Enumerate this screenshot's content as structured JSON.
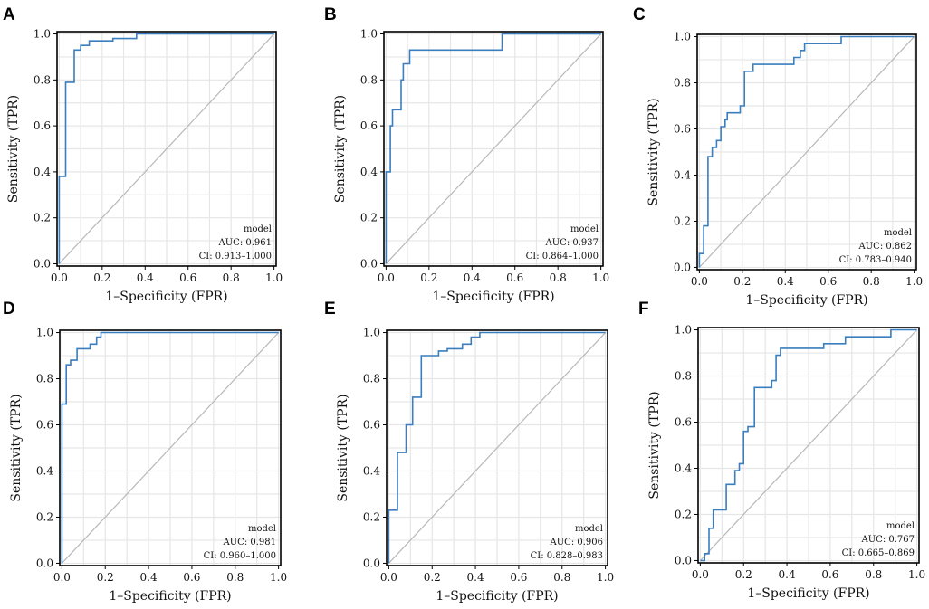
{
  "colors": {
    "roc_line": "#3a7ebf",
    "diagonal": "#b8b8b8",
    "grid": "#e6e6e6",
    "frame": "#000000"
  },
  "chart_data": [
    {
      "panel": "A",
      "type": "line",
      "xlabel": "1–Specificity (FPR)",
      "ylabel": "Sensitivity (TPR)",
      "xlim": [
        0,
        1
      ],
      "ylim": [
        0,
        1
      ],
      "xticks": [
        "0.0",
        "0.2",
        "0.4",
        "0.6",
        "0.8",
        "1.0"
      ],
      "yticks": [
        "0.0",
        "0.2",
        "0.4",
        "0.6",
        "0.8",
        "1.0"
      ],
      "grid": true,
      "legend": {
        "title": "model",
        "auc": "AUC: 0.961",
        "ci": "CI: 0.913–1.000",
        "position": "bottom-right"
      },
      "roc": [
        [
          0,
          0
        ],
        [
          0,
          0.38
        ],
        [
          0.03,
          0.38
        ],
        [
          0.03,
          0.79
        ],
        [
          0.07,
          0.79
        ],
        [
          0.07,
          0.93
        ],
        [
          0.1,
          0.93
        ],
        [
          0.1,
          0.95
        ],
        [
          0.14,
          0.95
        ],
        [
          0.14,
          0.97
        ],
        [
          0.25,
          0.97
        ],
        [
          0.25,
          0.98
        ],
        [
          0.36,
          0.98
        ],
        [
          0.36,
          1.0
        ],
        [
          1.0,
          1.0
        ]
      ]
    },
    {
      "panel": "B",
      "type": "line",
      "xlabel": "1–Specificity (FPR)",
      "ylabel": "Sensitivity (TPR)",
      "xlim": [
        0,
        1
      ],
      "ylim": [
        0,
        1
      ],
      "xticks": [
        "0.0",
        "0.2",
        "0.4",
        "0.6",
        "0.8",
        "1.0"
      ],
      "yticks": [
        "0.0",
        "0.2",
        "0.4",
        "0.6",
        "0.8",
        "1.0"
      ],
      "grid": true,
      "legend": {
        "title": "model",
        "auc": "AUC: 0.937",
        "ci": "CI: 0.864–1.000",
        "position": "bottom-right"
      },
      "roc": [
        [
          0,
          0
        ],
        [
          0,
          0.4
        ],
        [
          0.02,
          0.4
        ],
        [
          0.02,
          0.6
        ],
        [
          0.03,
          0.6
        ],
        [
          0.03,
          0.67
        ],
        [
          0.07,
          0.67
        ],
        [
          0.07,
          0.8
        ],
        [
          0.08,
          0.8
        ],
        [
          0.08,
          0.87
        ],
        [
          0.11,
          0.87
        ],
        [
          0.11,
          0.93
        ],
        [
          0.54,
          0.93
        ],
        [
          0.54,
          1.0
        ],
        [
          1.0,
          1.0
        ]
      ]
    },
    {
      "panel": "C",
      "type": "line",
      "xlabel": "1–Specificity (FPR)",
      "ylabel": "Sensitivity (TPR)",
      "xlim": [
        0,
        1
      ],
      "ylim": [
        0,
        1
      ],
      "xticks": [
        "0.0",
        "0.2",
        "0.4",
        "0.6",
        "0.8",
        "1.0"
      ],
      "yticks": [
        "0.0",
        "0.2",
        "0.4",
        "0.6",
        "0.8",
        "1.0"
      ],
      "grid": true,
      "legend": {
        "title": "model",
        "auc": "AUC: 0.862",
        "ci": "CI: 0.783–0.940",
        "position": "bottom-right"
      },
      "roc": [
        [
          0,
          0
        ],
        [
          0,
          0.06
        ],
        [
          0.02,
          0.06
        ],
        [
          0.02,
          0.18
        ],
        [
          0.04,
          0.18
        ],
        [
          0.04,
          0.48
        ],
        [
          0.06,
          0.48
        ],
        [
          0.06,
          0.52
        ],
        [
          0.08,
          0.52
        ],
        [
          0.08,
          0.55
        ],
        [
          0.1,
          0.55
        ],
        [
          0.1,
          0.61
        ],
        [
          0.12,
          0.61
        ],
        [
          0.12,
          0.64
        ],
        [
          0.13,
          0.64
        ],
        [
          0.13,
          0.67
        ],
        [
          0.19,
          0.67
        ],
        [
          0.19,
          0.7
        ],
        [
          0.21,
          0.7
        ],
        [
          0.21,
          0.85
        ],
        [
          0.25,
          0.85
        ],
        [
          0.25,
          0.88
        ],
        [
          0.44,
          0.88
        ],
        [
          0.44,
          0.91
        ],
        [
          0.47,
          0.91
        ],
        [
          0.47,
          0.94
        ],
        [
          0.49,
          0.94
        ],
        [
          0.49,
          0.97
        ],
        [
          0.66,
          0.97
        ],
        [
          0.66,
          1.0
        ],
        [
          1.0,
          1.0
        ]
      ]
    },
    {
      "panel": "D",
      "type": "line",
      "xlabel": "1–Specificity (FPR)",
      "ylabel": "Sensitivity (TPR)",
      "xlim": [
        0,
        1
      ],
      "ylim": [
        0,
        1
      ],
      "xticks": [
        "0.0",
        "0.2",
        "0.4",
        "0.6",
        "0.8",
        "1.0"
      ],
      "yticks": [
        "0.0",
        "0.2",
        "0.4",
        "0.6",
        "0.8",
        "1.0"
      ],
      "grid": true,
      "legend": {
        "title": "model",
        "auc": "AUC: 0.981",
        "ci": "CI: 0.960–1.000",
        "position": "bottom-right"
      },
      "roc": [
        [
          0,
          0
        ],
        [
          0,
          0.69
        ],
        [
          0.02,
          0.69
        ],
        [
          0.02,
          0.86
        ],
        [
          0.04,
          0.86
        ],
        [
          0.04,
          0.88
        ],
        [
          0.07,
          0.88
        ],
        [
          0.07,
          0.93
        ],
        [
          0.13,
          0.93
        ],
        [
          0.13,
          0.95
        ],
        [
          0.16,
          0.95
        ],
        [
          0.16,
          0.98
        ],
        [
          0.18,
          0.98
        ],
        [
          0.18,
          1.0
        ],
        [
          1.0,
          1.0
        ]
      ]
    },
    {
      "panel": "E",
      "type": "line",
      "xlabel": "1–Specificity (FPR)",
      "ylabel": "Sensitivity (TPR)",
      "xlim": [
        0,
        1
      ],
      "ylim": [
        0,
        1
      ],
      "xticks": [
        "0.0",
        "0.2",
        "0.4",
        "0.6",
        "0.8",
        "1.0"
      ],
      "yticks": [
        "0.0",
        "0.2",
        "0.4",
        "0.6",
        "0.8",
        "1.0"
      ],
      "grid": true,
      "legend": {
        "title": "model",
        "auc": "AUC: 0.906",
        "ci": "CI: 0.828–0.983",
        "position": "bottom-right"
      },
      "roc": [
        [
          0,
          0
        ],
        [
          0,
          0.23
        ],
        [
          0.04,
          0.23
        ],
        [
          0.04,
          0.48
        ],
        [
          0.08,
          0.48
        ],
        [
          0.08,
          0.6
        ],
        [
          0.11,
          0.6
        ],
        [
          0.11,
          0.72
        ],
        [
          0.15,
          0.72
        ],
        [
          0.15,
          0.9
        ],
        [
          0.23,
          0.9
        ],
        [
          0.23,
          0.92
        ],
        [
          0.27,
          0.92
        ],
        [
          0.27,
          0.93
        ],
        [
          0.34,
          0.93
        ],
        [
          0.34,
          0.95
        ],
        [
          0.38,
          0.95
        ],
        [
          0.38,
          0.98
        ],
        [
          0.42,
          0.98
        ],
        [
          0.42,
          1.0
        ],
        [
          1.0,
          1.0
        ]
      ]
    },
    {
      "panel": "F",
      "type": "line",
      "xlabel": "1–Specificity (FPR)",
      "ylabel": "Sensitivity (TPR)",
      "xlim": [
        0,
        1
      ],
      "ylim": [
        0,
        1
      ],
      "xticks": [
        "0.0",
        "0.2",
        "0.4",
        "0.6",
        "0.8",
        "1.0"
      ],
      "yticks": [
        "0.0",
        "0.2",
        "0.4",
        "0.6",
        "0.8",
        "1.0"
      ],
      "grid": true,
      "legend": {
        "title": "model",
        "auc": "AUC: 0.767",
        "ci": "CI: 0.665–0.869",
        "position": "bottom-right"
      },
      "roc": [
        [
          0,
          0
        ],
        [
          0.02,
          0
        ],
        [
          0.02,
          0.03
        ],
        [
          0.04,
          0.03
        ],
        [
          0.04,
          0.14
        ],
        [
          0.06,
          0.14
        ],
        [
          0.06,
          0.22
        ],
        [
          0.12,
          0.22
        ],
        [
          0.12,
          0.33
        ],
        [
          0.16,
          0.33
        ],
        [
          0.16,
          0.39
        ],
        [
          0.18,
          0.39
        ],
        [
          0.18,
          0.42
        ],
        [
          0.2,
          0.42
        ],
        [
          0.2,
          0.56
        ],
        [
          0.22,
          0.56
        ],
        [
          0.22,
          0.58
        ],
        [
          0.25,
          0.58
        ],
        [
          0.25,
          0.75
        ],
        [
          0.33,
          0.75
        ],
        [
          0.33,
          0.78
        ],
        [
          0.35,
          0.78
        ],
        [
          0.35,
          0.89
        ],
        [
          0.37,
          0.89
        ],
        [
          0.37,
          0.92
        ],
        [
          0.57,
          0.92
        ],
        [
          0.57,
          0.94
        ],
        [
          0.67,
          0.94
        ],
        [
          0.67,
          0.97
        ],
        [
          0.88,
          0.97
        ],
        [
          0.88,
          1.0
        ],
        [
          1.0,
          1.0
        ]
      ]
    }
  ]
}
